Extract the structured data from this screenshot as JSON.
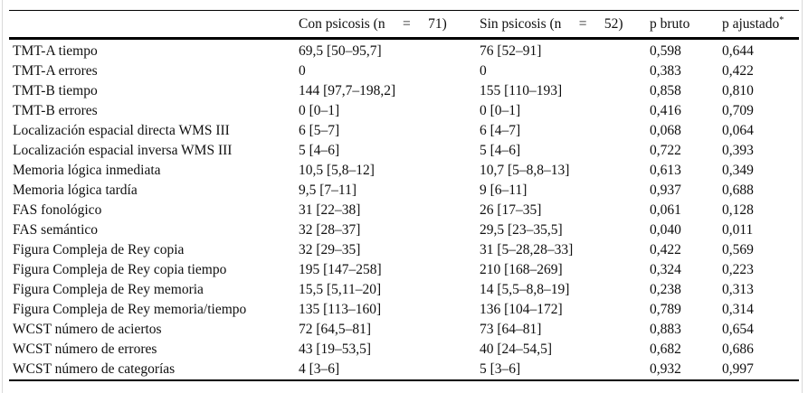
{
  "table": {
    "header": {
      "test_col": "",
      "con_psicosis": "Con psicosis (n     =     71)",
      "sin_psicosis": "Sin psicosis (n     =     52)",
      "p_bruto": "p bruto",
      "p_ajustado": "p ajustado",
      "p_ajustado_sup": "*"
    },
    "rows": [
      {
        "test": "TMT-A tiempo",
        "con": "69,5 [50–95,7]",
        "sin": "76 [52–91]",
        "p_bruto": "0,598",
        "p_ajustado": "0,644"
      },
      {
        "test": "TMT-A errores",
        "con": "0",
        "sin": "0",
        "p_bruto": "0,383",
        "p_ajustado": "0,422"
      },
      {
        "test": "TMT-B tiempo",
        "con": "144 [97,7–198,2]",
        "sin": "155 [110–193]",
        "p_bruto": "0,858",
        "p_ajustado": "0,810"
      },
      {
        "test": "TMT-B errores",
        "con": "0 [0–1]",
        "sin": "0 [0–1]",
        "p_bruto": "0,416",
        "p_ajustado": "0,709"
      },
      {
        "test": "Localización espacial directa WMS III",
        "con": "6 [5–7]",
        "sin": "6 [4–7]",
        "p_bruto": "0,068",
        "p_ajustado": "0,064"
      },
      {
        "test": "Localización espacial inversa WMS III",
        "con": "5 [4–6]",
        "sin": "5 [4–6]",
        "p_bruto": "0,722",
        "p_ajustado": "0,393"
      },
      {
        "test": "Memoria lógica inmediata",
        "con": "10,5 [5,8–12]",
        "sin": "10,7 [5–8,8–13]",
        "p_bruto": "0,613",
        "p_ajustado": "0,349"
      },
      {
        "test": "Memoria lógica tardía",
        "con": "9,5 [7–11]",
        "sin": "9 [6–11]",
        "p_bruto": "0,937",
        "p_ajustado": "0,688"
      },
      {
        "test": "FAS fonológico",
        "con": "31 [22–38]",
        "sin": "26 [17–35]",
        "p_bruto": "0,061",
        "p_ajustado": "0,128"
      },
      {
        "test": "FAS semántico",
        "con": "32 [28–37]",
        "sin": "29,5 [23–35,5]",
        "p_bruto": "0,040",
        "p_ajustado": "0,011"
      },
      {
        "test": "Figura Compleja de Rey copia",
        "con": "32 [29–35]",
        "sin": "31 [5–28,28–33]",
        "p_bruto": "0,422",
        "p_ajustado": "0,569"
      },
      {
        "test": "Figura Compleja de Rey copia tiempo",
        "con": "195 [147–258]",
        "sin": "210 [168–269]",
        "p_bruto": "0,324",
        "p_ajustado": "0,223"
      },
      {
        "test": "Figura Compleja de Rey memoria",
        "con": "15,5 [5,11–20]",
        "sin": "14 [5,5–8,8–19]",
        "p_bruto": "0,238",
        "p_ajustado": "0,313"
      },
      {
        "test": "Figura Compleja de Rey memoria/tiempo",
        "con": "135 [113–160]",
        "sin": "136 [104–172]",
        "p_bruto": "0,789",
        "p_ajustado": "0,314"
      },
      {
        "test": "WCST número de aciertos",
        "con": "72 [64,5–81]",
        "sin": "73 [64–81]",
        "p_bruto": "0,883",
        "p_ajustado": "0,654"
      },
      {
        "test": "WCST número de errores",
        "con": "43 [19–53,5]",
        "sin": "40 [24–54,5]",
        "p_bruto": "0,682",
        "p_ajustado": "0,686"
      },
      {
        "test": "WCST número de categorías",
        "con": "4 [3–6]",
        "sin": "5 [3–6]",
        "p_bruto": "0,932",
        "p_ajustado": "0,997"
      }
    ]
  }
}
